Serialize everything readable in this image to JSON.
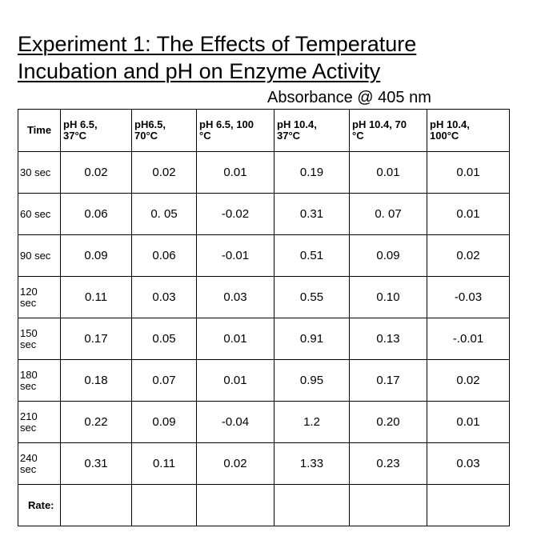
{
  "title": {
    "line1": "Experiment 1:  The Effects of Temperature",
    "line2": "Incubation and pH on Enzyme Activity"
  },
  "subtitle": "Absorbance @ 405 nm",
  "table": {
    "headers": {
      "time": "Time",
      "columns": [
        {
          "line1": "pH 6.5,",
          "line2": "37°C"
        },
        {
          "line1": "pH6.5,",
          "line2": "70°C"
        },
        {
          "line1": "pH 6.5, 100",
          "line2": "°C"
        },
        {
          "line1": "pH 10.4,",
          "line2": "37°C"
        },
        {
          "line1": "pH 10.4, 70",
          "line2": "°C"
        },
        {
          "line1": "pH 10.4,",
          "line2": "100°C"
        }
      ]
    },
    "rows": [
      {
        "time": [
          "30 sec",
          ""
        ],
        "values": [
          "0.02",
          "0.02",
          "0.01",
          "0.19",
          "0.01",
          "0.01"
        ]
      },
      {
        "time": [
          "60 sec",
          ""
        ],
        "values": [
          "0.06",
          "0. 05",
          "-0.02",
          "0.31",
          "0. 07",
          "0.01"
        ]
      },
      {
        "time": [
          "90 sec",
          ""
        ],
        "values": [
          "0.09",
          "0.06",
          "-0.01",
          "0.51",
          "0.09",
          "0.02"
        ]
      },
      {
        "time": [
          "120",
          "sec"
        ],
        "values": [
          "0.11",
          "0.03",
          "0.03",
          "0.55",
          "0.10",
          "-0.03"
        ]
      },
      {
        "time": [
          "150",
          "sec"
        ],
        "values": [
          "0.17",
          "0.05",
          "0.01",
          "0.91",
          "0.13",
          "-.0.01"
        ]
      },
      {
        "time": [
          "180",
          "sec"
        ],
        "values": [
          "0.18",
          "0.07",
          "0.01",
          "0.95",
          "0.17",
          "0.02"
        ]
      },
      {
        "time": [
          "210",
          "sec"
        ],
        "values": [
          "0.22",
          "0.09",
          "-0.04",
          "1.2",
          "0.20",
          "0.01"
        ]
      },
      {
        "time": [
          "240",
          "sec"
        ],
        "values": [
          "0.31",
          "0.11",
          "0.02",
          "1.33",
          "0.23",
          "0.03"
        ]
      }
    ],
    "rate_label": "Rate:",
    "rate_values": [
      "",
      "",
      "",
      "",
      "",
      ""
    ]
  }
}
